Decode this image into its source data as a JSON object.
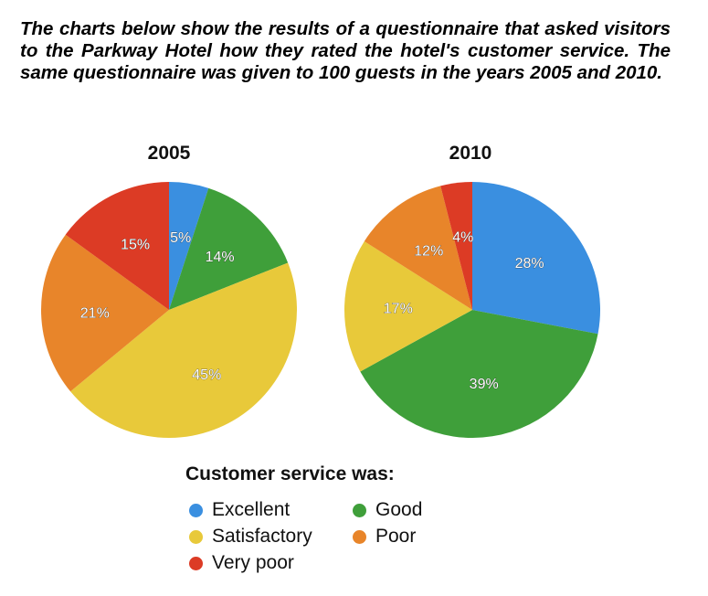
{
  "intro_text": "The charts below show the results of a questionnaire that asked visitors to the Parkway Hotel how they rated the hotel's customer service. The same questionnaire was given to 100 guests in the years 2005 and 2010.",
  "legend": {
    "title": "Customer service was:",
    "items": [
      {
        "label": "Excellent",
        "color": "#3a8fe0"
      },
      {
        "label": "Good",
        "color": "#3f9f3a"
      },
      {
        "label": "Satisfactory",
        "color": "#e8c93a"
      },
      {
        "label": "Poor",
        "color": "#e8852a"
      },
      {
        "label": "Very poor",
        "color": "#dc3b25"
      }
    ]
  },
  "chart_data": [
    {
      "type": "pie",
      "title": "2005",
      "slices": [
        {
          "category": "Excellent",
          "value": 5,
          "label": "5%"
        },
        {
          "category": "Good",
          "value": 14,
          "label": "14%"
        },
        {
          "category": "Satisfactory",
          "value": 45,
          "label": "45%"
        },
        {
          "category": "Poor",
          "value": 21,
          "label": "21%"
        },
        {
          "category": "Very poor",
          "value": 15,
          "label": "15%"
        }
      ]
    },
    {
      "type": "pie",
      "title": "2010",
      "slices": [
        {
          "category": "Excellent",
          "value": 28,
          "label": "28%"
        },
        {
          "category": "Good",
          "value": 39,
          "label": "39%"
        },
        {
          "category": "Satisfactory",
          "value": 17,
          "label": "17%"
        },
        {
          "category": "Poor",
          "value": 12,
          "label": "12%"
        },
        {
          "category": "Very poor",
          "value": 4,
          "label": "4%"
        }
      ]
    }
  ]
}
